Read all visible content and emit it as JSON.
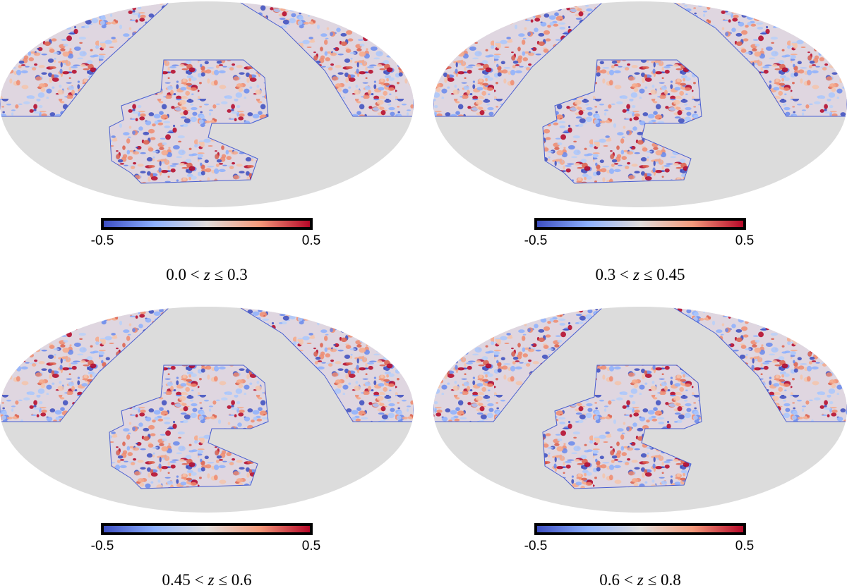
{
  "panels": [
    {
      "label": {
        "left": "0.0 <",
        "var": "z",
        "right": "≤ 0.3"
      },
      "colorbar": {
        "ticks": [
          -0.5,
          0.5
        ]
      }
    },
    {
      "label": {
        "left": "0.3 <",
        "var": "z",
        "right": "≤ 0.45"
      },
      "colorbar": {
        "ticks": [
          -0.5,
          0.5
        ]
      }
    },
    {
      "label": {
        "left": "0.45 <",
        "var": "z",
        "right": "≤ 0.6"
      },
      "colorbar": {
        "ticks": [
          -0.5,
          0.5
        ]
      }
    },
    {
      "label": {
        "left": "0.6 <",
        "var": "z",
        "right": "≤ 0.8"
      },
      "colorbar": {
        "ticks": [
          -0.5,
          0.5
        ]
      }
    }
  ]
}
